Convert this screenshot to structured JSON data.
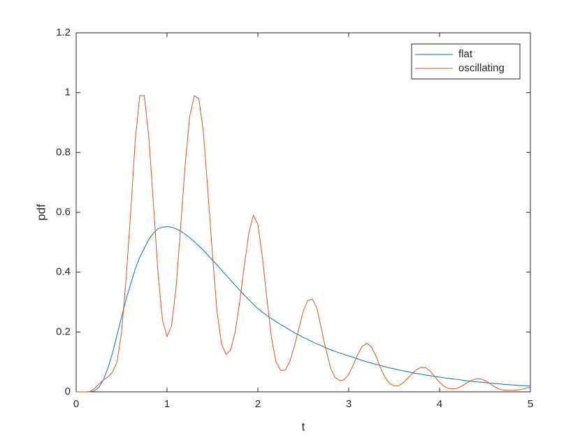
{
  "chart_data": {
    "type": "line",
    "xlabel": "t",
    "ylabel": "pdf",
    "xlim": [
      0,
      5
    ],
    "ylim": [
      0,
      1.2
    ],
    "xticks": [
      0,
      1,
      2,
      3,
      4,
      5
    ],
    "yticks": [
      0,
      0.2,
      0.4,
      0.6,
      0.8,
      1,
      1.2
    ],
    "legend": "northeast",
    "x": [
      0,
      0.05,
      0.1,
      0.15,
      0.2,
      0.25,
      0.3,
      0.35,
      0.4,
      0.45,
      0.5,
      0.55,
      0.6,
      0.65,
      0.7,
      0.75,
      0.8,
      0.85,
      0.9,
      0.95,
      1,
      1.05,
      1.1,
      1.15,
      1.2,
      1.25,
      1.3,
      1.35,
      1.4,
      1.45,
      1.5,
      1.55,
      1.6,
      1.65,
      1.7,
      1.75,
      1.8,
      1.85,
      1.9,
      1.95,
      2,
      2.05,
      2.1,
      2.15,
      2.2,
      2.25,
      2.3,
      2.35,
      2.4,
      2.45,
      2.5,
      2.55,
      2.6,
      2.65,
      2.7,
      2.75,
      2.8,
      2.85,
      2.9,
      2.95,
      3,
      3.05,
      3.1,
      3.15,
      3.2,
      3.25,
      3.3,
      3.35,
      3.4,
      3.45,
      3.5,
      3.55,
      3.6,
      3.65,
      3.7,
      3.75,
      3.8,
      3.85,
      3.9,
      3.95,
      4,
      4.05,
      4.1,
      4.15,
      4.2,
      4.25,
      4.3,
      4.35,
      4.4,
      4.45,
      4.5,
      4.55,
      4.6,
      4.65,
      4.7,
      4.75,
      4.8,
      4.85,
      4.9,
      4.95,
      5
    ],
    "series": [
      {
        "name": "flat",
        "color": "#0072BD",
        "values": [
          0,
          0,
          0,
          0,
          0.003,
          0.015,
          0.04,
          0.08,
          0.13,
          0.19,
          0.25,
          0.31,
          0.36,
          0.41,
          0.45,
          0.48,
          0.51,
          0.53,
          0.545,
          0.55,
          0.552,
          0.55,
          0.545,
          0.537,
          0.527,
          0.515,
          0.502,
          0.488,
          0.473,
          0.457,
          0.44,
          0.424,
          0.407,
          0.39,
          0.373,
          0.356,
          0.34,
          0.324,
          0.308,
          0.293,
          0.278,
          0.266,
          0.255,
          0.245,
          0.235,
          0.225,
          0.216,
          0.207,
          0.198,
          0.19,
          0.182,
          0.175,
          0.167,
          0.16,
          0.154,
          0.147,
          0.141,
          0.135,
          0.13,
          0.125,
          0.12,
          0.115,
          0.11,
          0.105,
          0.1,
          0.096,
          0.092,
          0.088,
          0.084,
          0.08,
          0.077,
          0.073,
          0.07,
          0.067,
          0.064,
          0.061,
          0.059,
          0.056,
          0.054,
          0.051,
          0.049,
          0.047,
          0.045,
          0.043,
          0.041,
          0.039,
          0.037,
          0.035,
          0.034,
          0.032,
          0.031,
          0.029,
          0.028,
          0.027,
          0.025,
          0.024,
          0.023,
          0.022,
          0.021,
          0.02,
          0.019
        ]
      },
      {
        "name": "oscillating",
        "color": "#D95319",
        "values": [
          0,
          0,
          0,
          0.001,
          0.01,
          0.025,
          0.04,
          0.05,
          0.065,
          0.1,
          0.2,
          0.38,
          0.6,
          0.84,
          0.99,
          0.99,
          0.85,
          0.63,
          0.4,
          0.24,
          0.185,
          0.22,
          0.35,
          0.55,
          0.76,
          0.92,
          0.99,
          0.98,
          0.87,
          0.67,
          0.46,
          0.27,
          0.16,
          0.125,
          0.14,
          0.2,
          0.3,
          0.42,
          0.53,
          0.59,
          0.56,
          0.45,
          0.31,
          0.18,
          0.1,
          0.072,
          0.072,
          0.1,
          0.15,
          0.21,
          0.27,
          0.305,
          0.31,
          0.28,
          0.21,
          0.14,
          0.08,
          0.048,
          0.038,
          0.04,
          0.058,
          0.09,
          0.125,
          0.153,
          0.162,
          0.15,
          0.12,
          0.08,
          0.048,
          0.028,
          0.02,
          0.02,
          0.03,
          0.045,
          0.062,
          0.075,
          0.082,
          0.08,
          0.068,
          0.05,
          0.032,
          0.018,
          0.011,
          0.01,
          0.012,
          0.02,
          0.03,
          0.038,
          0.043,
          0.043,
          0.038,
          0.028,
          0.018,
          0.01,
          0.006,
          0.005,
          0.005,
          0.006,
          0.008,
          0.012,
          0.015
        ]
      }
    ]
  }
}
